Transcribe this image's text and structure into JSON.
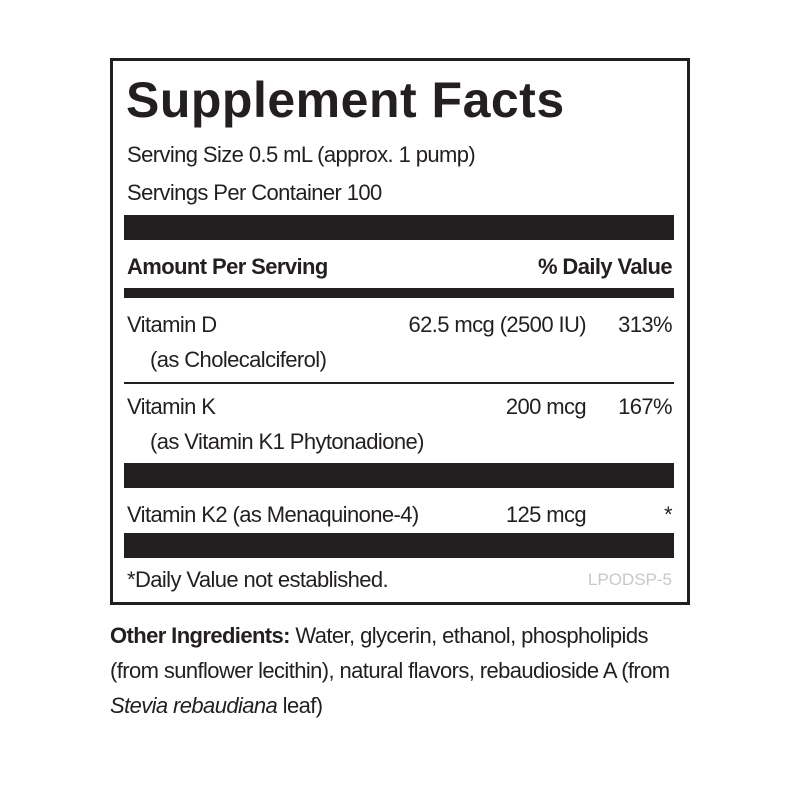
{
  "label": {
    "title": "Supplement Facts",
    "serving_size": "Serving Size 0.5 mL (approx. 1 pump)",
    "servings_per_container": "Servings Per Container 100",
    "header": {
      "amount": "Amount Per Serving",
      "daily_value": "% Daily Value"
    },
    "rows": [
      {
        "name": "Vitamin D",
        "source": "(as Cholecalciferol)",
        "amount": "62.5 mcg (2500 IU)",
        "daily_value": "313%"
      },
      {
        "name": "Vitamin K",
        "source": "(as Vitamin K1 Phytonadione)",
        "amount": "200 mcg",
        "daily_value": "167%"
      },
      {
        "name": "Vitamin K2 (as Menaquinone-4)",
        "amount": "125 mcg",
        "daily_value": "*"
      }
    ],
    "footnote": "*Daily Value not established.",
    "code": "LPODSP-5"
  },
  "other_ingredients": {
    "label": "Other Ingredients:",
    "text": "Water, glycerin, ethanol, phospholipids (from sunflower lecithin), natural flavors, rebaudioside A (from ",
    "italic": "Stevia rebaudiana",
    "text_end": " leaf)"
  }
}
